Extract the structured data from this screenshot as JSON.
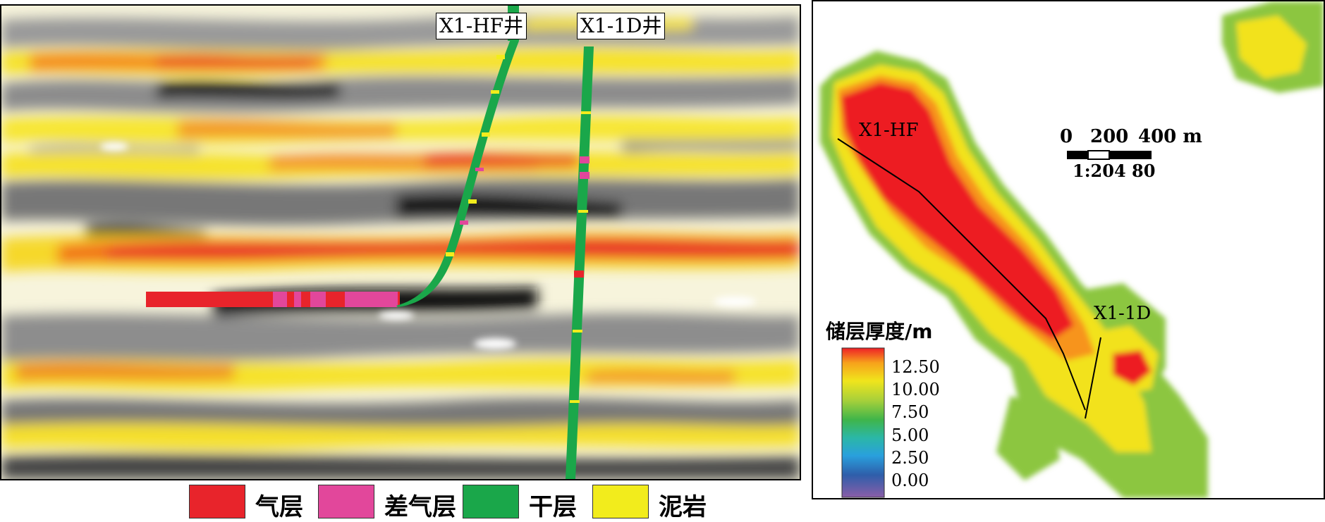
{
  "left_panel": {
    "well_labels": [
      "X1-HF井",
      "X1-1D井"
    ],
    "legend": [
      {
        "label": "气层",
        "color": "#e8242b"
      },
      {
        "label": "差气层",
        "color": "#e2479b"
      },
      {
        "label": "干层",
        "color": "#1aa74a"
      },
      {
        "label": "泥岩",
        "color": "#f2ec1c"
      }
    ]
  },
  "right_panel": {
    "well_labels": [
      "X1-HF",
      "X1-1D"
    ],
    "scale_bar": {
      "ticks": [
        "0",
        "200",
        "400 m"
      ],
      "ratio": "1:204 80"
    },
    "colorbar": {
      "title": "储层厚度/m",
      "ticks": [
        "12.50",
        "10.00",
        "7.50",
        "5.00",
        "2.50",
        "0.00"
      ],
      "colors": [
        "#ee2027",
        "#f7a21b",
        "#f0e51c",
        "#a8d03a",
        "#3fb54a",
        "#2bb7a6",
        "#29a0dd",
        "#2e5eaa",
        "#8a5ea8"
      ]
    }
  }
}
